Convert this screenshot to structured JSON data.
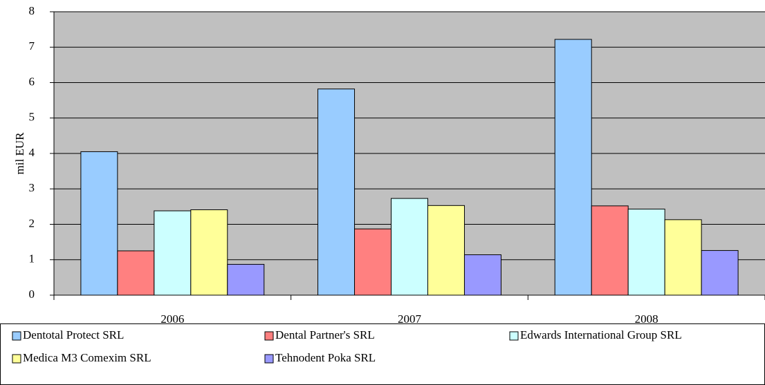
{
  "chart_data": {
    "type": "bar",
    "y_label": "mil EUR",
    "categories": [
      "2006",
      "2007",
      "2008"
    ],
    "series": [
      {
        "name": "Dentotal Protect SRL",
        "color": "#99ccff",
        "values": [
          4.05,
          5.82,
          7.22
        ]
      },
      {
        "name": "Dental Partner's SRL",
        "color": "#ff8080",
        "values": [
          1.25,
          1.87,
          2.52
        ]
      },
      {
        "name": "Edwards International Group SRL",
        "color": "#ccffff",
        "values": [
          2.38,
          2.73,
          2.43
        ]
      },
      {
        "name": "Medica M3 Comexim SRL",
        "color": "#ffff99",
        "values": [
          2.41,
          2.53,
          2.13
        ]
      },
      {
        "name": "Tehnodent Poka SRL",
        "color": "#9999ff",
        "values": [
          0.87,
          1.14,
          1.26
        ]
      }
    ],
    "ylim": [
      0,
      8
    ],
    "yticks": [
      0,
      1,
      2,
      3,
      4,
      5,
      6,
      7,
      8
    ],
    "grid": true,
    "legend": "bottom"
  }
}
